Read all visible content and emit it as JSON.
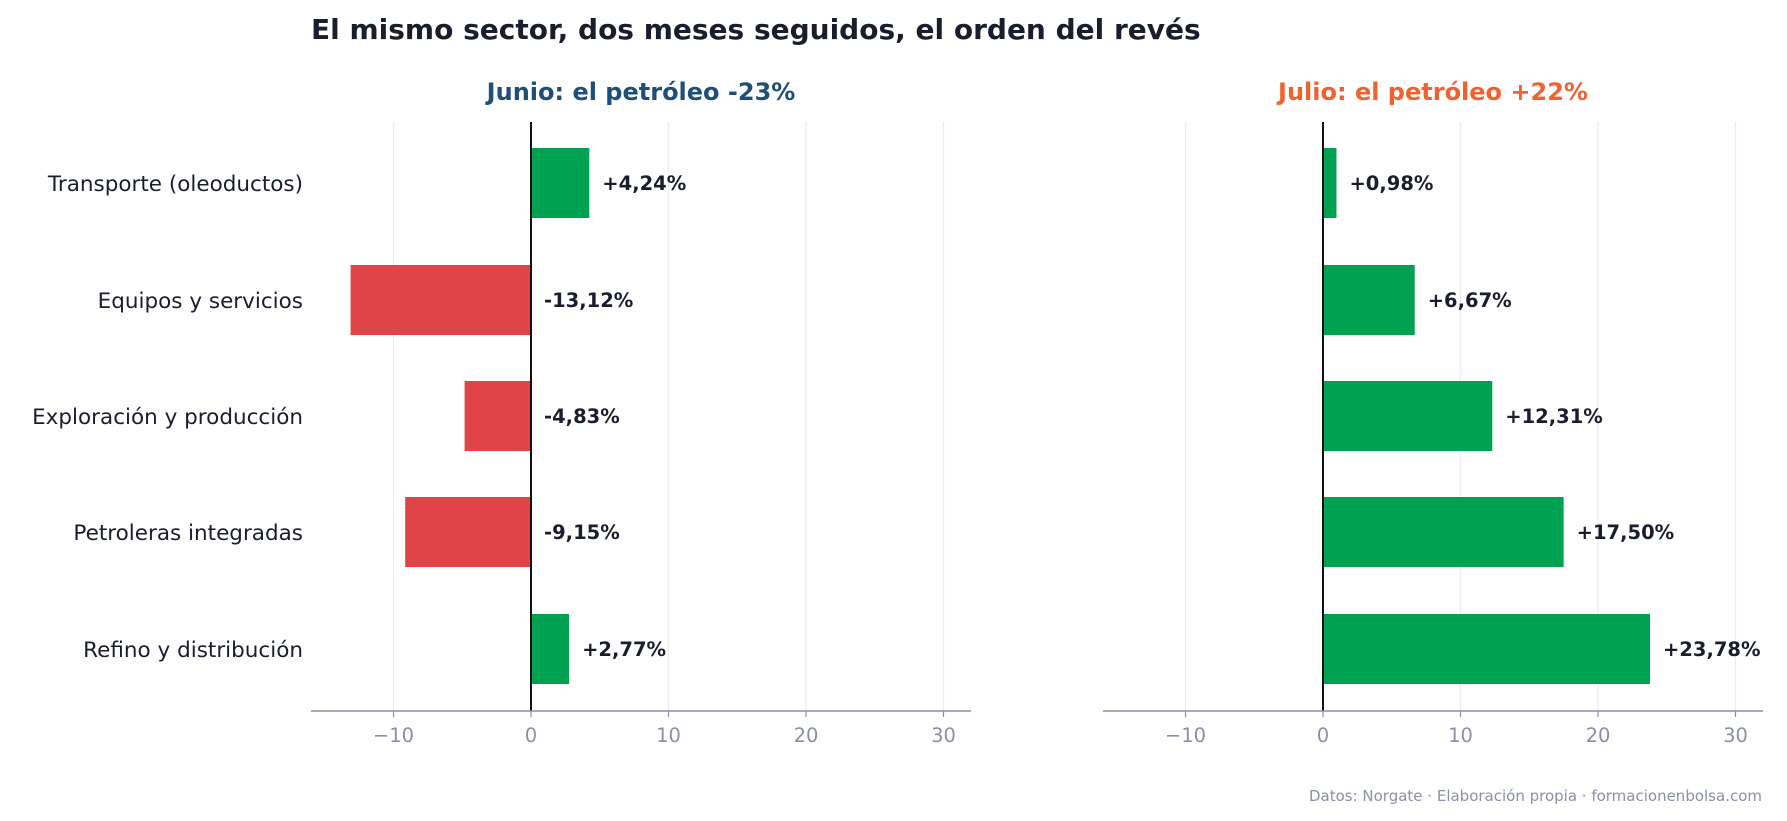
{
  "title": "El mismo sector, dos meses seguidos, el orden del revés",
  "footer": "Datos: Norgate · Elaboración propia · formacionenbolsa.com",
  "colors": {
    "positive": "#00a150",
    "negative": "#e04446",
    "june_title": "#1f4e79",
    "july_title": "#f06230",
    "text": "#1a1d2e",
    "muted": "#8a91a6",
    "grid": "#ebebeb",
    "axis": "#8a91a6",
    "zero_line": "#111111"
  },
  "chart_data": [
    {
      "type": "bar",
      "orientation": "horizontal",
      "title": "Junio: el petróleo -23%",
      "categories": [
        "Transporte (oleoductos)",
        "Equipos y servicios",
        "Exploración y producción",
        "Petroleras integradas",
        "Refino y distribución"
      ],
      "values": [
        4.24,
        -13.12,
        -4.83,
        -9.15,
        2.77
      ],
      "value_labels": [
        "+4,24%",
        "-13,12%",
        "-4,83%",
        "-9,15%",
        "+2,77%"
      ],
      "xlim": [
        -16,
        32
      ],
      "xticks": [
        -10,
        0,
        10,
        20,
        30
      ],
      "xtick_labels": [
        "−10",
        "0",
        "10",
        "20",
        "30"
      ],
      "grid": true
    },
    {
      "type": "bar",
      "orientation": "horizontal",
      "title": "Julio: el petróleo +22%",
      "categories": [
        "Transporte (oleoductos)",
        "Equipos y servicios",
        "Exploración y producción",
        "Petroleras integradas",
        "Refino y distribución"
      ],
      "values": [
        0.98,
        6.67,
        12.31,
        17.5,
        23.78
      ],
      "value_labels": [
        "+0,98%",
        "+6,67%",
        "+12,31%",
        "+17,50%",
        "+23,78%"
      ],
      "xlim": [
        -16,
        32
      ],
      "xticks": [
        -10,
        0,
        10,
        20,
        30
      ],
      "xtick_labels": [
        "−10",
        "0",
        "10",
        "20",
        "30"
      ],
      "grid": true
    }
  ]
}
